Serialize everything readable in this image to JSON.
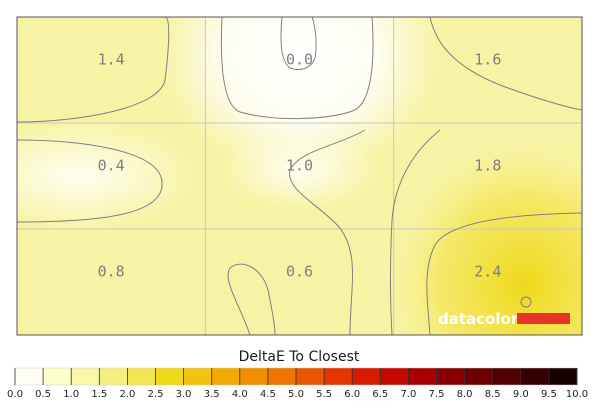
{
  "chart_data": {
    "type": "heatmap",
    "title": "DeltaE To Closest",
    "rows": 3,
    "cols": 3,
    "values": [
      [
        1.4,
        0.0,
        1.6
      ],
      [
        0.4,
        1.0,
        1.8
      ],
      [
        0.8,
        0.6,
        2.4
      ]
    ],
    "value_labels": [
      [
        "1.4",
        "0.0",
        "1.6"
      ],
      [
        "0.4",
        "1.0",
        "1.8"
      ],
      [
        "0.8",
        "0.6",
        "2.4"
      ]
    ],
    "colorbar": {
      "min": 0.0,
      "max": 10.0,
      "step": 0.5,
      "tick_labels": [
        "0.0",
        "0.5",
        "1.0",
        "1.5",
        "2.0",
        "2.5",
        "3.0",
        "3.5",
        "4.0",
        "4.5",
        "5.0",
        "5.5",
        "6.0",
        "6.5",
        "7.0",
        "7.5",
        "8.0",
        "8.5",
        "9.0",
        "9.5",
        "10.0"
      ],
      "colors": [
        "#fffff5",
        "#ffffcc",
        "#fbf6a8",
        "#f6ef80",
        "#f3e653",
        "#f1d81a",
        "#f1c30f",
        "#f1aa05",
        "#f09000",
        "#ee7400",
        "#ea5600",
        "#e33500",
        "#d81a00",
        "#c40a00",
        "#a80000",
        "#8a0000",
        "#6d0000",
        "#520000",
        "#360000",
        "#1b0000"
      ]
    },
    "grid": true,
    "contours": true
  },
  "logo": {
    "text": "datacolor",
    "bar_color": "#e8332b"
  }
}
